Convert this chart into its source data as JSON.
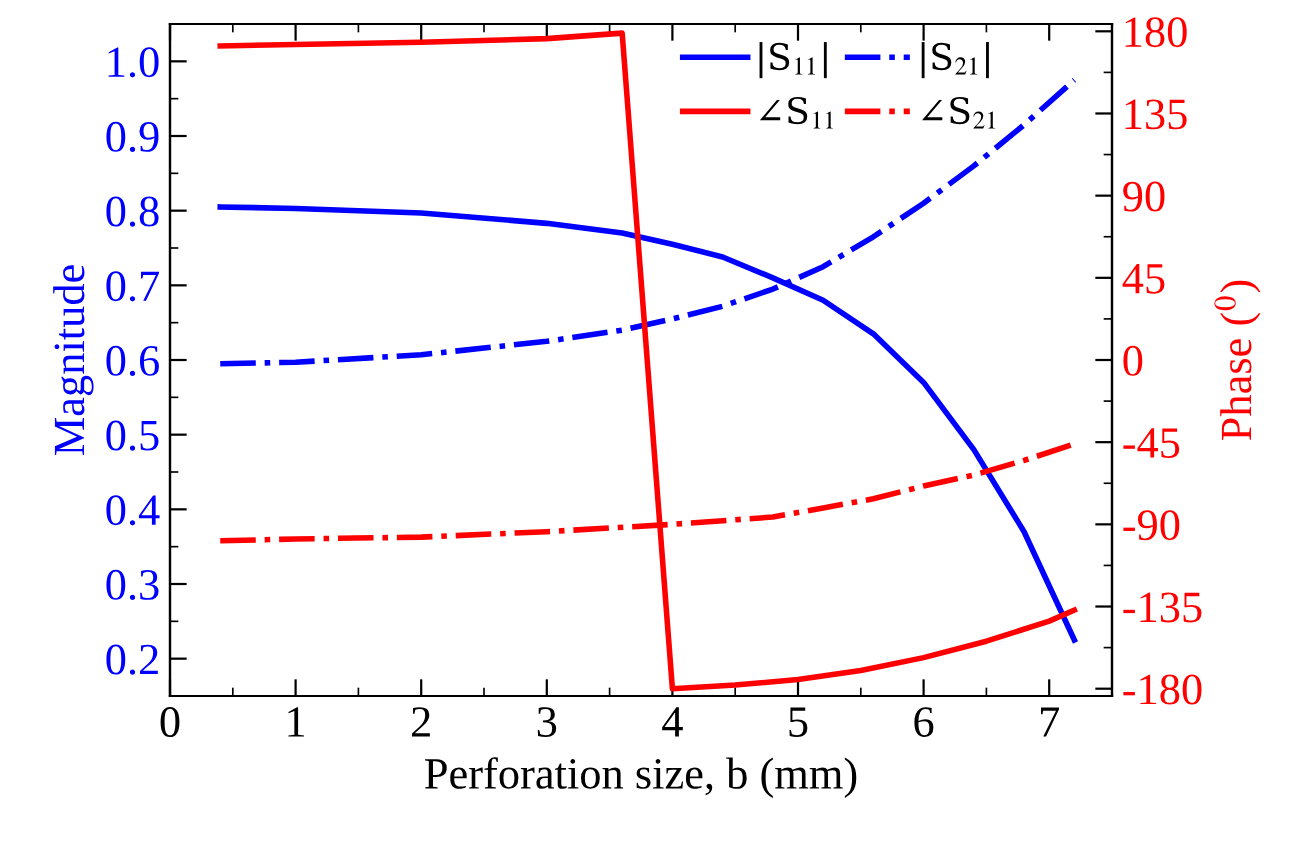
{
  "chart_data": {
    "type": "line",
    "xlabel": "Perforation size, b (mm)",
    "ylabel": "Magnitude",
    "y2label": "Phase ($^{0}$)",
    "xlim": [
      0,
      7.5
    ],
    "xticks": [
      0,
      1,
      2,
      3,
      4,
      5,
      6,
      7
    ],
    "ylim": [
      0.15,
      1.05
    ],
    "yticks": [
      {
        "value": 0.2,
        "label": "0.2"
      },
      {
        "value": 0.3,
        "label": "0.3"
      },
      {
        "value": 0.4,
        "label": "0.4"
      },
      {
        "value": 0.5,
        "label": "0.5"
      },
      {
        "value": 0.6,
        "label": "0.6"
      },
      {
        "value": 0.7,
        "label": "0.7"
      },
      {
        "value": 0.8,
        "label": "0.8"
      },
      {
        "value": 0.9,
        "label": "0.9"
      },
      {
        "value": 1.0,
        "label": "1.0"
      }
    ],
    "y2lim": [
      -184,
      184
    ],
    "y2ticks": [
      -180,
      -135,
      -90,
      -45,
      0,
      45,
      90,
      135,
      180
    ],
    "grid": false,
    "legend": "top right",
    "marker": "none",
    "series": [
      {
        "name": "|S$_{11}$|",
        "color": "#0000ff",
        "line_style": "solid",
        "x": [
          0.4,
          1,
          2,
          3,
          3.6,
          4,
          4.4,
          4.8,
          5.2,
          5.6,
          6,
          6.4,
          6.8,
          7.2
        ],
        "values": [
          0.805,
          0.803,
          0.797,
          0.783,
          0.77,
          0.755,
          0.738,
          0.71,
          0.68,
          0.635,
          0.57,
          0.48,
          0.37,
          0.225
        ]
      },
      {
        "name": "|S$_{21}$|",
        "color": "#0000ff",
        "line_style": "dashdot",
        "x": [
          0.4,
          1,
          2,
          3,
          3.6,
          4,
          4.4,
          4.8,
          5.2,
          5.6,
          6,
          6.4,
          6.8,
          7.2
        ],
        "values": [
          0.595,
          0.597,
          0.607,
          0.625,
          0.64,
          0.655,
          0.672,
          0.695,
          0.725,
          0.765,
          0.81,
          0.86,
          0.915,
          0.975
        ]
      },
      {
        "name": "∠S$_{11}$",
        "color": "#ff0000",
        "line_style": "solid",
        "axis": "y2",
        "x": [
          0.4,
          2,
          3,
          3.6,
          4,
          4.5,
          5,
          5.5,
          6,
          6.5,
          7,
          7.2
        ],
        "values": [
          172,
          174,
          176,
          179,
          -180,
          -178,
          -175,
          -170,
          -163,
          -154,
          -143,
          -137
        ]
      },
      {
        "name": "∠S$_{21}$",
        "color": "#ff0000",
        "line_style": "dashdot",
        "axis": "y2",
        "x": [
          0.4,
          1,
          2,
          3,
          4,
          4.8,
          5.2,
          5.6,
          6,
          6.4,
          6.8,
          7.2
        ],
        "values": [
          -99,
          -98,
          -97,
          -94,
          -90,
          -86,
          -81,
          -76,
          -69,
          -63,
          -55,
          -46
        ]
      }
    ]
  }
}
